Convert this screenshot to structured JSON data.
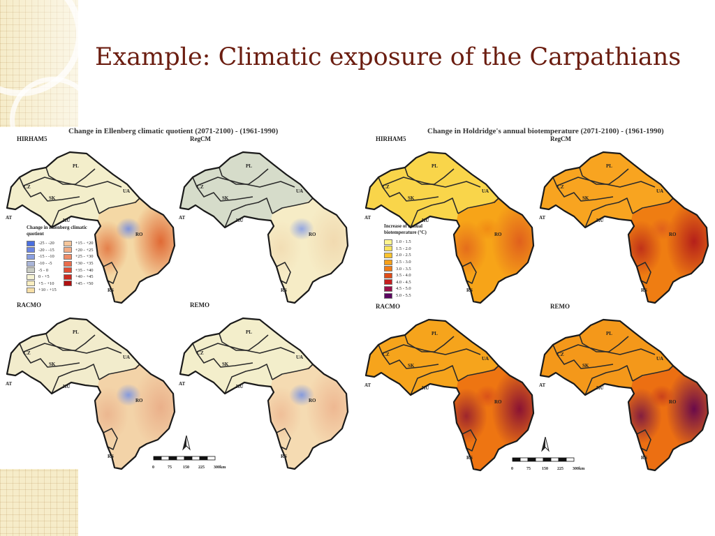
{
  "slide": {
    "title": "Example: Climatic exposure of the Carpathians"
  },
  "figures": [
    {
      "title": "Change in Ellenberg climatic quotient (2071-2100) - (1961-1990)",
      "maps": [
        {
          "label": "HIRHAM5",
          "fill": "#f4d8a5",
          "west": "#f3eecb",
          "hotspot": "#e06a35",
          "cool": "#7b90db"
        },
        {
          "label": "RegCM",
          "fill": "#f6ecc6",
          "west": "#d6dcca",
          "hotspot": "#f1dab0",
          "cool": "#8fa3e3"
        },
        {
          "label": "RACMO",
          "fill": "#f3d3a8",
          "west": "#f2eccc",
          "hotspot": "#eab08a",
          "cool": "#7f97e0"
        },
        {
          "label": "REMO",
          "fill": "#f5dbb2",
          "west": "#f3eecb",
          "hotspot": "#eeb892",
          "cool": "#7f97e0"
        }
      ],
      "regions": [
        "PL",
        "UA",
        "CZ",
        "SK",
        "HU",
        "AT",
        "RO",
        "RS"
      ],
      "legend": {
        "title": "Change in Ellenberg climatic quotient",
        "items": [
          {
            "label": "-25 - -20",
            "color": "#4a6fe0"
          },
          {
            "label": "-20 - -15",
            "color": "#6c86e2"
          },
          {
            "label": "-15 - -10",
            "color": "#8a9fe0"
          },
          {
            "label": "-10 - -5",
            "color": "#a9b5d8"
          },
          {
            "label": "-5 - 0",
            "color": "#c9ccc2"
          },
          {
            "label": "0 - +5",
            "color": "#f6f3d3"
          },
          {
            "label": "+5 - +10",
            "color": "#f9eec0"
          },
          {
            "label": "+10 - +15",
            "color": "#f7dfa6"
          },
          {
            "label": "+15 - +20",
            "color": "#f5c69b"
          },
          {
            "label": "+20 - +25",
            "color": "#f2ab84"
          },
          {
            "label": "+25 - +30",
            "color": "#ef8c67"
          },
          {
            "label": "+30 - +35",
            "color": "#e96c4b"
          },
          {
            "label": "+35 - +40",
            "color": "#e04d33"
          },
          {
            "label": "+40 - +45",
            "color": "#cc2b20"
          },
          {
            "label": "+45 - +50",
            "color": "#b01010"
          }
        ]
      },
      "scale": [
        "0",
        "75",
        "150",
        "225",
        "300km"
      ]
    },
    {
      "title": "Change in Holdridge's annual biotemperature (2071-2100) - (1961-1990)",
      "maps": [
        {
          "label": "HIRHAM5",
          "fill": "#f7a418",
          "west": "#f9d54a",
          "hotspot": "#e0601c",
          "cool": "#f08a14"
        },
        {
          "label": "RegCM",
          "fill": "#ef7d12",
          "west": "#f8a420",
          "hotspot": "#b5201a",
          "cool": "#e0601c"
        },
        {
          "label": "RACMO",
          "fill": "#ee7512",
          "west": "#f6a41c",
          "hotspot": "#8a1233",
          "cool": "#d8501a"
        },
        {
          "label": "REMO",
          "fill": "#ec6f12",
          "west": "#f4981a",
          "hotspot": "#6a0a4a",
          "cool": "#c8401c"
        }
      ],
      "regions": [
        "PL",
        "UA",
        "CZ",
        "SK",
        "HU",
        "AT",
        "RO",
        "RS"
      ],
      "legend": {
        "title": "Increase of annual biotemperature (°C)",
        "items": [
          {
            "label": "1.0 - 1.5",
            "color": "#fff58f"
          },
          {
            "label": "1.5 - 2.0",
            "color": "#fbe25c"
          },
          {
            "label": "2.0 - 2.5",
            "color": "#f9c22e"
          },
          {
            "label": "2.5 - 3.0",
            "color": "#f6a01a"
          },
          {
            "label": "3.0 - 3.5",
            "color": "#f07a14"
          },
          {
            "label": "3.5 - 4.0",
            "color": "#e04c18"
          },
          {
            "label": "4.0 - 4.5",
            "color": "#c51f1f"
          },
          {
            "label": "4.5 - 5.0",
            "color": "#99104a"
          },
          {
            "label": "5.0 - 5.5",
            "color": "#5a0660"
          }
        ]
      },
      "scale": [
        "0",
        "75",
        "150",
        "225",
        "300km"
      ]
    }
  ]
}
